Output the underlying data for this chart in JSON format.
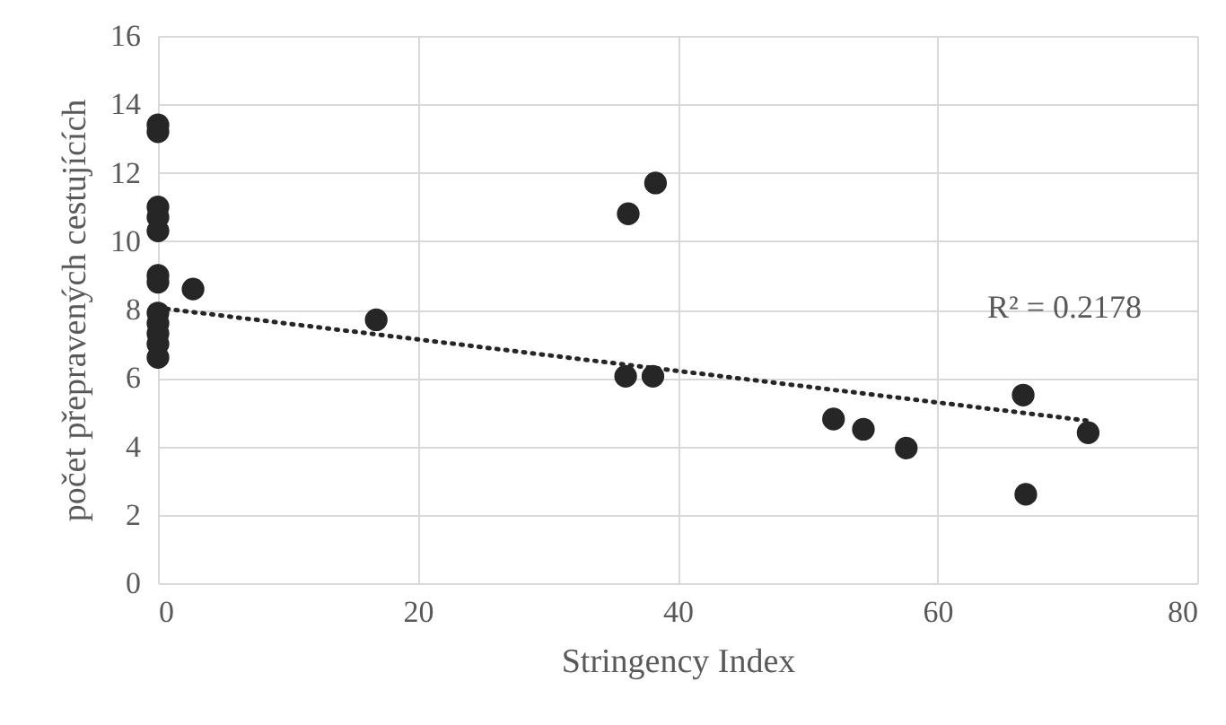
{
  "chart_data": {
    "type": "scatter",
    "xlabel": "Stringency Index",
    "ylabel": "počet přepravených cestujících",
    "xlim": [
      0,
      80
    ],
    "xticks": [
      0,
      20,
      40,
      60,
      80
    ],
    "ylim": [
      0,
      16
    ],
    "yticks": [
      0,
      2,
      4,
      6,
      8,
      10,
      12,
      14,
      16
    ],
    "grid": true,
    "series": [
      {
        "color": "#262626",
        "marker": "circle",
        "x": [
          0,
          0,
          0,
          0,
          0,
          0,
          0,
          0,
          0,
          0,
          0,
          0,
          2.7,
          16.8,
          36.2,
          38.3,
          36.0,
          38.1,
          52.0,
          54.3,
          57.6,
          66.6,
          66.8,
          71.6
        ],
        "values": [
          13.4,
          13.2,
          11.0,
          10.7,
          10.3,
          9.0,
          8.8,
          7.9,
          7.6,
          7.3,
          7.0,
          6.6,
          8.6,
          7.7,
          10.8,
          11.7,
          6.05,
          6.05,
          4.8,
          4.5,
          3.95,
          5.5,
          2.6,
          4.4
        ]
      },
      {
        "type": "line",
        "color": "#262626",
        "marker": "none",
        "line_style": "dotted",
        "x": [
          0,
          71.6
        ],
        "values": [
          8.05,
          4.75
        ]
      }
    ],
    "annotations": [
      "R² = 0.2178"
    ]
  }
}
